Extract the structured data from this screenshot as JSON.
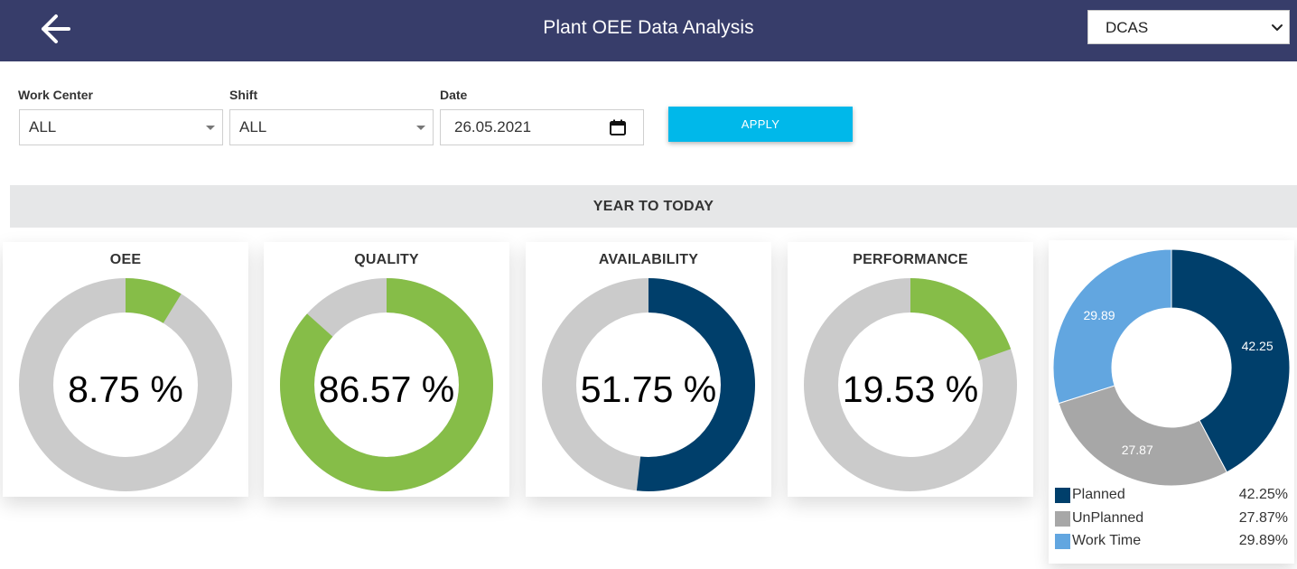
{
  "header": {
    "title": "Plant OEE Data Analysis",
    "plant_select_value": "DCAS"
  },
  "filters": {
    "work_center": {
      "label": "Work Center",
      "value": "ALL"
    },
    "shift": {
      "label": "Shift",
      "value": "ALL"
    },
    "date": {
      "label": "Date",
      "value": "26.05.2021"
    },
    "apply_label": "APPLY"
  },
  "section_title": "YEAR TO TODAY",
  "colors": {
    "header_bg": "#373d6a",
    "gauge_bg": "#cbcbcb",
    "green": "#86bd48",
    "navy": "#003f6b",
    "gray": "#a7a7a7",
    "light_blue": "#62a6e0",
    "apply": "#00b8ea"
  },
  "gauges": [
    {
      "title": "OEE",
      "display": "8.75 %",
      "value": 8.75,
      "color": "#86bd48"
    },
    {
      "title": "QUALITY",
      "display": "86.57 %",
      "value": 86.57,
      "color": "#86bd48"
    },
    {
      "title": "AVAILABILITY",
      "display": "51.75 %",
      "value": 51.75,
      "color": "#003f6b"
    },
    {
      "title": "PERFORMANCE",
      "display": "19.53 %",
      "value": 19.53,
      "color": "#86bd48"
    }
  ],
  "chart_data": {
    "type": "pie",
    "donut": true,
    "slices": [
      {
        "name": "Planned",
        "value": 42.25,
        "label": "42.25",
        "legend_value": "42.25%",
        "color": "#003f6b"
      },
      {
        "name": "UnPlanned",
        "value": 27.87,
        "label": "27.87",
        "legend_value": "27.87%",
        "color": "#a7a7a7"
      },
      {
        "name": "Work Time",
        "value": 29.89,
        "label": "29.89",
        "legend_value": "29.89%",
        "color": "#62a6e0"
      }
    ],
    "legend_position": "bottom"
  }
}
